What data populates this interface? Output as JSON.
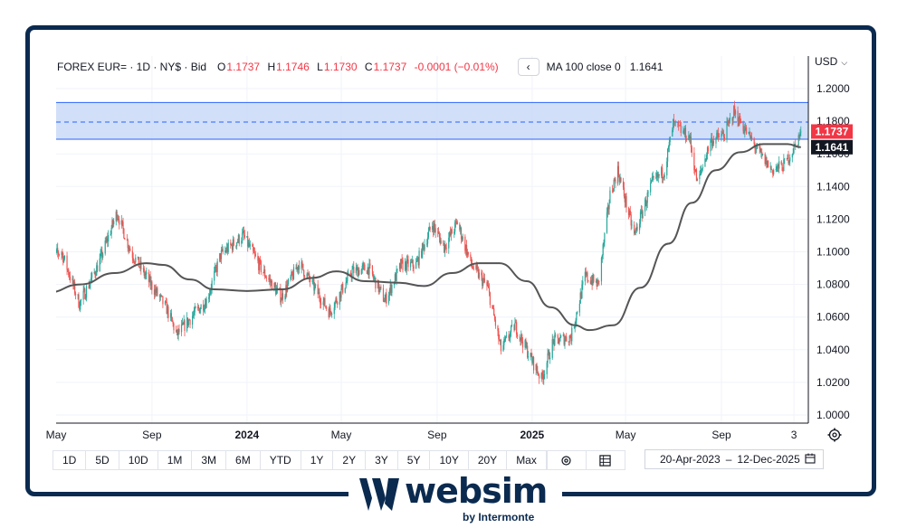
{
  "legend": {
    "symbol": "FOREX EUR= · 1D · NY$ · Bid",
    "open_label": "O",
    "open": "1.1737",
    "high_label": "H",
    "high": "1.1746",
    "low_label": "L",
    "low": "1.1730",
    "close_label": "C",
    "close": "1.1737",
    "change": "-0.0001 (−0.01%)",
    "collapse_icon": "chevron-left-icon",
    "ma_label": "MA 100 close 0",
    "ma_value": "1.1641"
  },
  "currency": {
    "label": "USD",
    "icon": "chevron-down-icon"
  },
  "price_tags": {
    "last": "1.1737",
    "ma": "1.1641",
    "last_color": "#f23645",
    "ma_color": "#131722"
  },
  "toolbar": {
    "ranges": [
      "1D",
      "5D",
      "10D",
      "1M",
      "3M",
      "6M",
      "YTD",
      "1Y",
      "2Y",
      "3Y",
      "5Y",
      "10Y",
      "20Y",
      "Max"
    ],
    "icons": [
      "gear-icon",
      "table-icon"
    ]
  },
  "date_range": {
    "from": "20-Apr-2023",
    "separator": "–",
    "to": "12-Dec-2025",
    "icon": "calendar-icon"
  },
  "logo": {
    "name": "websim",
    "sub": "by Intermonte"
  },
  "colors": {
    "up": "#26a69a",
    "down": "#ef5350",
    "ma": "#555555",
    "band_fill": "#c9d9f8",
    "band_line": "#2962ff",
    "frame": "#0b2a4f"
  },
  "chart_data": {
    "type": "candlestick",
    "series_name": "EUR=",
    "y_axis": {
      "min": 1.0,
      "max": 1.2,
      "ticks": [
        "1.0000",
        "1.0200",
        "1.0400",
        "1.0600",
        "1.0800",
        "1.1000",
        "1.1200",
        "1.1400",
        "1.1600",
        "1.1800",
        "1.2000"
      ]
    },
    "x_axis": {
      "ticks": [
        {
          "label": "May",
          "date": "2023-05-01"
        },
        {
          "label": "Sep",
          "date": "2023-09-01"
        },
        {
          "label": "2024",
          "date": "2024-01-01",
          "bold": true
        },
        {
          "label": "May",
          "date": "2024-05-01"
        },
        {
          "label": "Sep",
          "date": "2024-09-01"
        },
        {
          "label": "2025",
          "date": "2025-01-01",
          "bold": true
        },
        {
          "label": "May",
          "date": "2025-05-01"
        },
        {
          "label": "Sep",
          "date": "2025-09-01"
        },
        {
          "label": "3",
          "date": "2025-12-03"
        }
      ],
      "start": "2023-04-20",
      "end": "2025-12-12"
    },
    "close_path": [
      {
        "date": "2023-04-20",
        "close": 1.097
      },
      {
        "date": "2023-05-08",
        "close": 1.1
      },
      {
        "date": "2023-05-31",
        "close": 1.068
      },
      {
        "date": "2023-06-25",
        "close": 1.093
      },
      {
        "date": "2023-07-18",
        "close": 1.124
      },
      {
        "date": "2023-08-05",
        "close": 1.1
      },
      {
        "date": "2023-08-28",
        "close": 1.082
      },
      {
        "date": "2023-09-20",
        "close": 1.065
      },
      {
        "date": "2023-10-03",
        "close": 1.049
      },
      {
        "date": "2023-10-25",
        "close": 1.062
      },
      {
        "date": "2023-11-10",
        "close": 1.07
      },
      {
        "date": "2023-11-28",
        "close": 1.098
      },
      {
        "date": "2023-12-27",
        "close": 1.11
      },
      {
        "date": "2024-01-20",
        "close": 1.089
      },
      {
        "date": "2024-02-14",
        "close": 1.072
      },
      {
        "date": "2024-03-08",
        "close": 1.093
      },
      {
        "date": "2024-04-16",
        "close": 1.063
      },
      {
        "date": "2024-05-15",
        "close": 1.088
      },
      {
        "date": "2024-06-05",
        "close": 1.09
      },
      {
        "date": "2024-06-26",
        "close": 1.07
      },
      {
        "date": "2024-07-17",
        "close": 1.092
      },
      {
        "date": "2024-08-05",
        "close": 1.092
      },
      {
        "date": "2024-08-26",
        "close": 1.117
      },
      {
        "date": "2024-09-10",
        "close": 1.103
      },
      {
        "date": "2024-09-27",
        "close": 1.118
      },
      {
        "date": "2024-10-15",
        "close": 1.092
      },
      {
        "date": "2024-11-05",
        "close": 1.078
      },
      {
        "date": "2024-11-22",
        "close": 1.04
      },
      {
        "date": "2024-12-10",
        "close": 1.055
      },
      {
        "date": "2024-12-30",
        "close": 1.035
      },
      {
        "date": "2025-01-13",
        "close": 1.022
      },
      {
        "date": "2025-01-28",
        "close": 1.045
      },
      {
        "date": "2025-02-20",
        "close": 1.048
      },
      {
        "date": "2025-03-10",
        "close": 1.085
      },
      {
        "date": "2025-03-27",
        "close": 1.08
      },
      {
        "date": "2025-04-11",
        "close": 1.135
      },
      {
        "date": "2025-04-21",
        "close": 1.15
      },
      {
        "date": "2025-05-12",
        "close": 1.11
      },
      {
        "date": "2025-06-04",
        "close": 1.142
      },
      {
        "date": "2025-06-20",
        "close": 1.15
      },
      {
        "date": "2025-07-01",
        "close": 1.178
      },
      {
        "date": "2025-07-22",
        "close": 1.17
      },
      {
        "date": "2025-08-01",
        "close": 1.142
      },
      {
        "date": "2025-08-18",
        "close": 1.168
      },
      {
        "date": "2025-09-05",
        "close": 1.172
      },
      {
        "date": "2025-09-17",
        "close": 1.186
      },
      {
        "date": "2025-10-05",
        "close": 1.172
      },
      {
        "date": "2025-10-20",
        "close": 1.16
      },
      {
        "date": "2025-11-05",
        "close": 1.15
      },
      {
        "date": "2025-11-20",
        "close": 1.153
      },
      {
        "date": "2025-12-05",
        "close": 1.165
      },
      {
        "date": "2025-12-12",
        "close": 1.1737
      }
    ],
    "moving_average": {
      "label": "MA 100 close",
      "points": [
        {
          "date": "2023-04-20",
          "value": 1.075
        },
        {
          "date": "2023-06-01",
          "value": 1.08
        },
        {
          "date": "2023-07-15",
          "value": 1.087
        },
        {
          "date": "2023-08-25",
          "value": 1.093
        },
        {
          "date": "2023-09-15",
          "value": 1.092
        },
        {
          "date": "2023-10-20",
          "value": 1.083
        },
        {
          "date": "2023-11-20",
          "value": 1.077
        },
        {
          "date": "2024-01-01",
          "value": 1.076
        },
        {
          "date": "2024-02-15",
          "value": 1.077
        },
        {
          "date": "2024-03-25",
          "value": 1.084
        },
        {
          "date": "2024-04-25",
          "value": 1.088
        },
        {
          "date": "2024-06-01",
          "value": 1.082
        },
        {
          "date": "2024-07-15",
          "value": 1.081
        },
        {
          "date": "2024-08-15",
          "value": 1.079
        },
        {
          "date": "2024-09-20",
          "value": 1.087
        },
        {
          "date": "2024-10-25",
          "value": 1.093
        },
        {
          "date": "2024-11-20",
          "value": 1.093
        },
        {
          "date": "2024-12-25",
          "value": 1.082
        },
        {
          "date": "2025-01-25",
          "value": 1.066
        },
        {
          "date": "2025-02-25",
          "value": 1.055
        },
        {
          "date": "2025-03-15",
          "value": 1.052
        },
        {
          "date": "2025-04-15",
          "value": 1.055
        },
        {
          "date": "2025-05-20",
          "value": 1.078
        },
        {
          "date": "2025-06-25",
          "value": 1.105
        },
        {
          "date": "2025-07-25",
          "value": 1.13
        },
        {
          "date": "2025-08-25",
          "value": 1.15
        },
        {
          "date": "2025-09-25",
          "value": 1.161
        },
        {
          "date": "2025-10-25",
          "value": 1.166
        },
        {
          "date": "2025-11-25",
          "value": 1.166
        },
        {
          "date": "2025-12-12",
          "value": 1.1641
        }
      ]
    },
    "band": {
      "upper": 1.1915,
      "lower": 1.169,
      "mid": 1.1795,
      "style": "filled rectangle with dashed midline"
    },
    "last_price": 1.1737,
    "ma_last": 1.1641,
    "grid": true
  }
}
